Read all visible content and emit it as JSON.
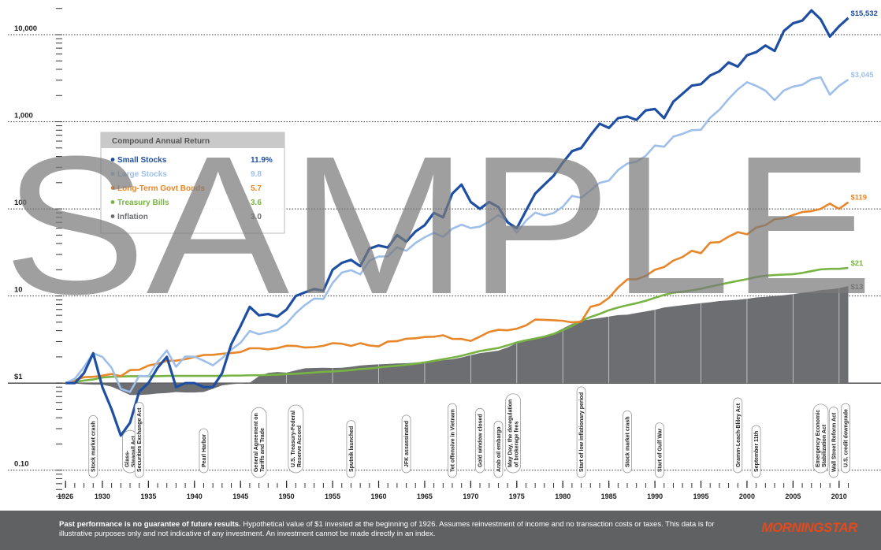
{
  "chart_data": {
    "type": "line",
    "log_scale": true,
    "grid": true,
    "baseline": 1,
    "watermark": "SAMPLE",
    "legend": {
      "title": "Compound Annual Return",
      "position": "upper left"
    },
    "x": [
      1926,
      1927,
      1928,
      1929,
      1930,
      1931,
      1932,
      1933,
      1934,
      1935,
      1936,
      1937,
      1938,
      1939,
      1940,
      1941,
      1942,
      1943,
      1944,
      1945,
      1946,
      1947,
      1948,
      1949,
      1950,
      1951,
      1952,
      1953,
      1954,
      1955,
      1956,
      1957,
      1958,
      1959,
      1960,
      1961,
      1962,
      1963,
      1964,
      1965,
      1966,
      1967,
      1968,
      1969,
      1970,
      1971,
      1972,
      1973,
      1974,
      1975,
      1976,
      1977,
      1978,
      1979,
      1980,
      1981,
      1982,
      1983,
      1984,
      1985,
      1986,
      1987,
      1988,
      1989,
      1990,
      1991,
      1992,
      1993,
      1994,
      1995,
      1996,
      1997,
      1998,
      1999,
      2000,
      2001,
      2002,
      2003,
      2004,
      2005,
      2006,
      2007,
      2008,
      2009,
      2010,
      2011
    ],
    "xlim": [
      1925.3,
      2011.3
    ],
    "xticks": [
      1926,
      1930,
      1935,
      1940,
      1945,
      1950,
      1955,
      1960,
      1965,
      1970,
      1975,
      1980,
      1985,
      1990,
      1995,
      2000,
      2005,
      2010
    ],
    "ylim": [
      0.05,
      25000
    ],
    "yticks": [
      {
        "value": 0.1,
        "label": "0.10"
      },
      {
        "value": 1,
        "label": "$1"
      },
      10,
      100,
      {
        "value": 1000,
        "label": "1,000"
      },
      {
        "value": 10000,
        "label": "10,000"
      }
    ],
    "series": [
      {
        "name": "Small Stocks",
        "color": "#1f4fa3",
        "annual_return": "11.9%",
        "end_label": "$15,532",
        "style": "line",
        "values": [
          1,
          1.0,
          1.3,
          2.2,
          0.9,
          0.5,
          0.25,
          0.35,
          0.8,
          1.0,
          1.5,
          2.0,
          0.9,
          1.0,
          1.0,
          0.9,
          0.9,
          1.3,
          2.8,
          4.5,
          7.5,
          6.0,
          6.2,
          5.8,
          7.0,
          10,
          11,
          12,
          11.5,
          20,
          24,
          26,
          22,
          35,
          38,
          36,
          50,
          42,
          55,
          65,
          90,
          80,
          150,
          190,
          120,
          100,
          120,
          105,
          70,
          60,
          95,
          150,
          190,
          240,
          340,
          460,
          500,
          700,
          950,
          850,
          1100,
          1150,
          1050,
          1350,
          1400,
          1100,
          1700,
          2100,
          2600,
          2700,
          3400,
          3800,
          4800,
          4300,
          5800,
          6300,
          7500,
          6500,
          11000,
          13500,
          14500,
          19000,
          15000,
          9500,
          12500,
          15532
        ]
      },
      {
        "name": "Large Stocks",
        "color": "#9ebfe9",
        "annual_return": "9.8",
        "end_label": "$3,045",
        "style": "line",
        "values": [
          1,
          1.12,
          1.53,
          2.2,
          2.0,
          1.5,
          0.86,
          0.79,
          1.21,
          1.2,
          1.77,
          2.37,
          1.54,
          2.02,
          2.01,
          1.81,
          1.6,
          1.93,
          2.42,
          2.9,
          3.96,
          3.64,
          3.85,
          4.06,
          4.83,
          6.36,
          7.89,
          9.34,
          9.25,
          14.1,
          18.6,
          19.8,
          17.7,
          25.4,
          28.4,
          28.5,
          36.2,
          33.0,
          40.6,
          47.2,
          53.1,
          47.8,
          59.2,
          65.8,
          60.2,
          62.6,
          71.6,
          85.1,
          72.6,
          53.4,
          73.3,
          90.6,
          84.1,
          89.6,
          106,
          141,
          134,
          163,
          199,
          211,
          279,
          331,
          348,
          406,
          534,
          517,
          675,
          727,
          800,
          810,
          1113,
          1370,
          1828,
          2350,
          2845,
          2586,
          2279,
          1775,
          2285,
          2533,
          2658,
          3077,
          3246,
          2045,
          2586,
          3045
        ]
      },
      {
        "name": "Long-Term Govt Bonds",
        "color": "#e8862a",
        "annual_return": "5.7",
        "end_label": "$119",
        "style": "line",
        "values": [
          1,
          1.08,
          1.17,
          1.18,
          1.22,
          1.27,
          1.2,
          1.41,
          1.42,
          1.59,
          1.67,
          1.8,
          1.81,
          1.88,
          1.99,
          2.1,
          2.11,
          2.17,
          2.21,
          2.27,
          2.51,
          2.51,
          2.44,
          2.52,
          2.68,
          2.67,
          2.56,
          2.59,
          2.68,
          2.87,
          2.83,
          2.67,
          2.87,
          2.7,
          2.64,
          3.0,
          3.03,
          3.23,
          3.27,
          3.38,
          3.41,
          3.54,
          3.22,
          3.21,
          3.05,
          3.42,
          3.87,
          4.09,
          4.04,
          4.21,
          4.59,
          5.36,
          5.32,
          5.26,
          5.19,
          4.98,
          5.07,
          7.5,
          8,
          9.5,
          12.5,
          15.5,
          15.5,
          17,
          20,
          21.5,
          25.5,
          28,
          33,
          31,
          41,
          41.5,
          48,
          54,
          51,
          61,
          65,
          76,
          78,
          85,
          92,
          94,
          100,
          115,
          100,
          119
        ]
      },
      {
        "name": "Treasury Bills",
        "color": "#77b443",
        "annual_return": "3.6",
        "end_label": "$21",
        "style": "line",
        "values": [
          1,
          1.03,
          1.07,
          1.1,
          1.16,
          1.18,
          1.19,
          1.2,
          1.2,
          1.2,
          1.2,
          1.21,
          1.21,
          1.21,
          1.21,
          1.21,
          1.21,
          1.21,
          1.22,
          1.22,
          1.23,
          1.23,
          1.24,
          1.25,
          1.27,
          1.28,
          1.3,
          1.32,
          1.35,
          1.36,
          1.38,
          1.41,
          1.45,
          1.47,
          1.51,
          1.55,
          1.58,
          1.62,
          1.67,
          1.73,
          1.8,
          1.88,
          1.96,
          2.06,
          2.19,
          2.33,
          2.43,
          2.53,
          2.71,
          2.93,
          3.1,
          3.25,
          3.42,
          3.67,
          4.05,
          4.53,
          5.18,
          5.73,
          6.23,
          6.86,
          7.38,
          7.83,
          8.26,
          8.8,
          9.53,
          10.3,
          10.9,
          11.2,
          11.6,
          12.1,
          12.8,
          13.5,
          14.2,
          14.9,
          15.6,
          16.5,
          17.1,
          17.4,
          17.6,
          17.8,
          18.4,
          19.3,
          20.2,
          20.5,
          20.5,
          21
        ]
      },
      {
        "name": "Inflation",
        "color": "#6d6e71",
        "annual_return": "3.0",
        "end_label": "$13",
        "style": "area",
        "values": [
          1,
          0.99,
          0.97,
          0.96,
          0.96,
          0.91,
          0.82,
          0.73,
          0.73,
          0.74,
          0.76,
          0.77,
          0.79,
          0.78,
          0.78,
          0.79,
          0.86,
          0.94,
          0.97,
          0.99,
          1.01,
          1.2,
          1.31,
          1.34,
          1.32,
          1.4,
          1.48,
          1.49,
          1.5,
          1.49,
          1.5,
          1.54,
          1.59,
          1.62,
          1.64,
          1.66,
          1.68,
          1.69,
          1.72,
          1.74,
          1.77,
          1.83,
          1.88,
          1.97,
          2.09,
          2.21,
          2.28,
          2.36,
          2.57,
          2.88,
          3.08,
          3.22,
          3.44,
          3.75,
          4.24,
          4.77,
          5.19,
          5.39,
          5.59,
          5.81,
          6.03,
          6.1,
          6.37,
          6.65,
          6.95,
          7.38,
          7.6,
          7.83,
          8.04,
          8.26,
          8.47,
          8.75,
          8.9,
          9.04,
          9.28,
          9.61,
          9.76,
          10.0,
          10.2,
          10.5,
          10.9,
          11.2,
          11.7,
          11.9,
          12.3,
          13
        ]
      }
    ],
    "events": [
      {
        "x": 1929,
        "lines": [
          "Stock market crash"
        ]
      },
      {
        "x": 1933,
        "lines": [
          "Glass-",
          "Steagall Act"
        ]
      },
      {
        "x": 1934,
        "lines": [
          "Securities Exchange Act"
        ]
      },
      {
        "x": 1941,
        "lines": [
          "Pearl Harbor"
        ]
      },
      {
        "x": 1947,
        "lines": [
          "General Agreement on",
          "Tariffs and Trade"
        ]
      },
      {
        "x": 1951,
        "lines": [
          "U.S. Treasury-Federal",
          "Reserve Accord"
        ]
      },
      {
        "x": 1957,
        "lines": [
          "Sputnik launched"
        ]
      },
      {
        "x": 1963,
        "lines": [
          "JFK assassinated"
        ]
      },
      {
        "x": 1968,
        "lines": [
          "Tet offensive in Vietnam"
        ]
      },
      {
        "x": 1971,
        "lines": [
          "Gold window closed"
        ]
      },
      {
        "x": 1973,
        "lines": [
          "Arab oil embargo"
        ]
      },
      {
        "x": 1974.6,
        "lines": [
          "May Day, the deregulation",
          "of brokerage fees"
        ]
      },
      {
        "x": 1982,
        "lines": [
          "Start of low inflationary period"
        ]
      },
      {
        "x": 1987,
        "lines": [
          "Stock market crash"
        ]
      },
      {
        "x": 1990.5,
        "lines": [
          "Start of Gulf War"
        ]
      },
      {
        "x": 1999,
        "lines": [
          "Gramm-Leach-Bliley Act"
        ]
      },
      {
        "x": 2001,
        "lines": [
          "September 11th"
        ]
      },
      {
        "x": 2008,
        "lines": [
          "Emergency Economic",
          "Stabilization Act"
        ]
      },
      {
        "x": 2009.4,
        "lines": [
          "Wall Street Reform Act"
        ]
      },
      {
        "x": 2010.7,
        "lines": [
          "U.S. credit downgrade"
        ]
      }
    ]
  },
  "footer": {
    "bold": "Past performance is no guarantee of future results.",
    "text": "Hypothetical value of $1 invested at the beginning of 1926. Assumes reinvestment of income and no transaction costs or taxes. This data is for illustrative purposes only and not indicative of any investment. An investment cannot be made directly in an index.",
    "logo": "MORNINGSTAR"
  }
}
